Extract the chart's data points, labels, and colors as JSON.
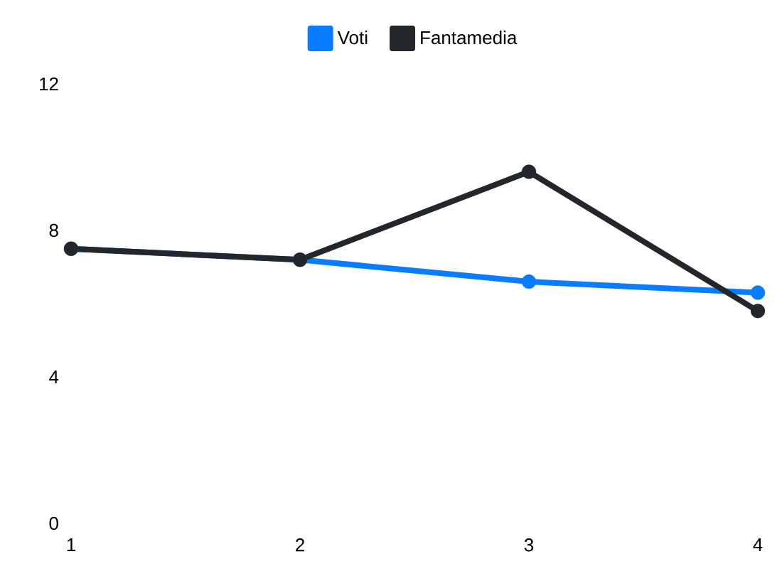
{
  "chart_data": {
    "type": "line",
    "categories": [
      "1",
      "2",
      "3",
      "4"
    ],
    "series": [
      {
        "name": "Voti",
        "color": "#0a7cff",
        "values": [
          7.5,
          7.2,
          6.6,
          6.3
        ]
      },
      {
        "name": "Fantamedia",
        "color": "#23262b",
        "values": [
          7.5,
          7.2,
          9.6,
          5.8
        ]
      }
    ],
    "ylim": [
      0,
      12
    ],
    "yticks": [
      0,
      4,
      8,
      12
    ],
    "legend": "top",
    "marker": "circle",
    "line_style": "solid"
  }
}
